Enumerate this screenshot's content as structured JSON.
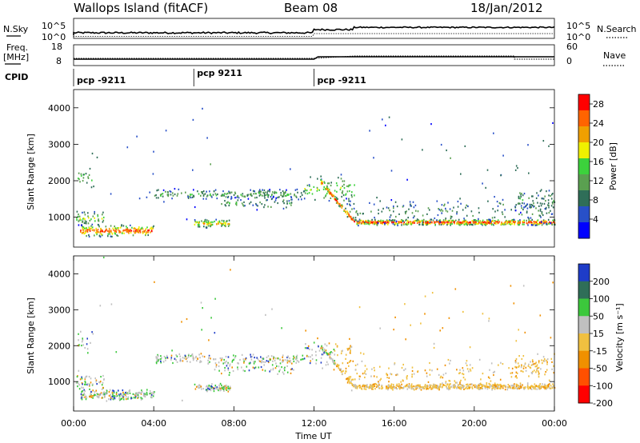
{
  "header": {
    "site": "Wallops Island (fitACF)",
    "beam": "Beam 08",
    "date": "18/Jan/2012"
  },
  "strip_nsky": {
    "left_label": "N.Sky",
    "right_label": "N.Search",
    "left_ticks": [
      "10^5",
      "10^0"
    ],
    "right_ticks": [
      "10^5",
      "10^0"
    ]
  },
  "strip_freq": {
    "left_label_1": "Freq.",
    "left_label_2": "[MHz]",
    "right_label": "Nave",
    "left_ticks": [
      "18",
      "8"
    ],
    "right_ticks": [
      "60",
      "0"
    ]
  },
  "cpid": {
    "label": "CPID",
    "segments": [
      {
        "label": "pcp -9211",
        "start_hour": 0
      },
      {
        "label": "pcp 9211",
        "start_hour": 6
      },
      {
        "label": "pcp -9211",
        "start_hour": 12
      }
    ]
  },
  "chart_data": [
    {
      "type": "heatmap",
      "name": "power",
      "ylabel": "Slant Range [km]",
      "y_ticks": [
        "1000",
        "2000",
        "3000",
        "4000"
      ],
      "ylim": [
        180,
        4500
      ],
      "xlim_hours": [
        0,
        24
      ],
      "colorbar_label": "Power [dB]",
      "colorbar_ticks": [
        "4",
        "8",
        "12",
        "16",
        "20",
        "24",
        "28"
      ],
      "colorbar_range": [
        0,
        30
      ],
      "colorbar_colors": [
        "#0000ff",
        "#2850c8",
        "#2f6e58",
        "#5aa050",
        "#3cd23c",
        "#f0f000",
        "#f0a000",
        "#ff6400",
        "#ff0000"
      ]
    },
    {
      "type": "heatmap",
      "name": "velocity",
      "ylabel": "Slant Range [km]",
      "xlabel": "Time UT",
      "y_ticks": [
        "1000",
        "2000",
        "3000",
        "4000"
      ],
      "ylim": [
        180,
        4500
      ],
      "xlim_hours": [
        0,
        24
      ],
      "x_ticks": [
        "00:00",
        "04:00",
        "08:00",
        "12:00",
        "16:00",
        "20:00",
        "00:00"
      ],
      "colorbar_label": "Velocity [m s⁻¹]",
      "colorbar_ticks": [
        "200",
        "100",
        "50",
        "15",
        "-15",
        "-50",
        "-100",
        "-200"
      ],
      "colorbar_colors": [
        "#1e3cc8",
        "#2f6e58",
        "#3cc83c",
        "#c0c0c0",
        "#f0c040",
        "#f09000",
        "#ff5000",
        "#ff0000"
      ]
    }
  ]
}
